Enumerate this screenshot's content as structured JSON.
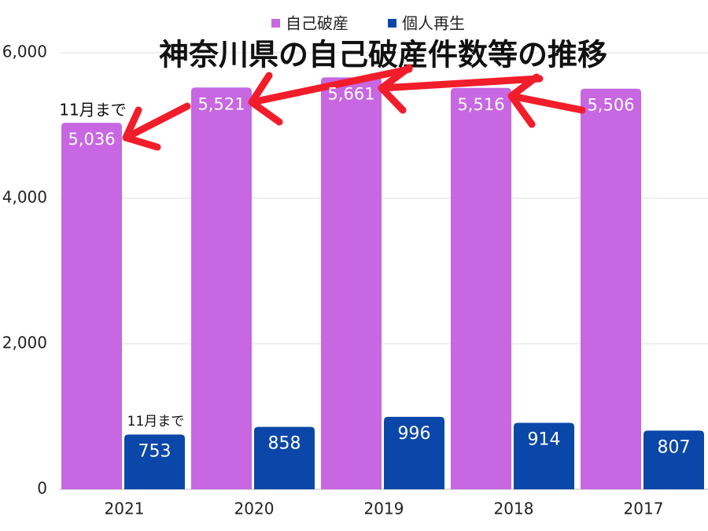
{
  "chart_data": {
    "type": "bar",
    "title": "神奈川県の自己破産件数等の推移",
    "categories": [
      "2021",
      "2020",
      "2019",
      "2018",
      "2017"
    ],
    "series": [
      {
        "name": "自己破産",
        "color": "#c767e2",
        "values": [
          5036,
          5521,
          5661,
          5516,
          5506
        ],
        "value_labels": [
          "5,036",
          "5,521",
          "5,661",
          "5,516",
          "5,506"
        ]
      },
      {
        "name": "個人再生",
        "color": "#0b47a8",
        "values": [
          753,
          858,
          996,
          914,
          807
        ]
      }
    ],
    "annotations": [
      "11月まで",
      "11月まで"
    ],
    "ylim": [
      0,
      6000
    ],
    "yticks": [
      0,
      {
        "value": 2000,
        "label": "2,000"
      },
      {
        "value": 4000,
        "label": "4,000"
      },
      {
        "value": 6000,
        "label": "6,000"
      }
    ],
    "grid": true
  }
}
